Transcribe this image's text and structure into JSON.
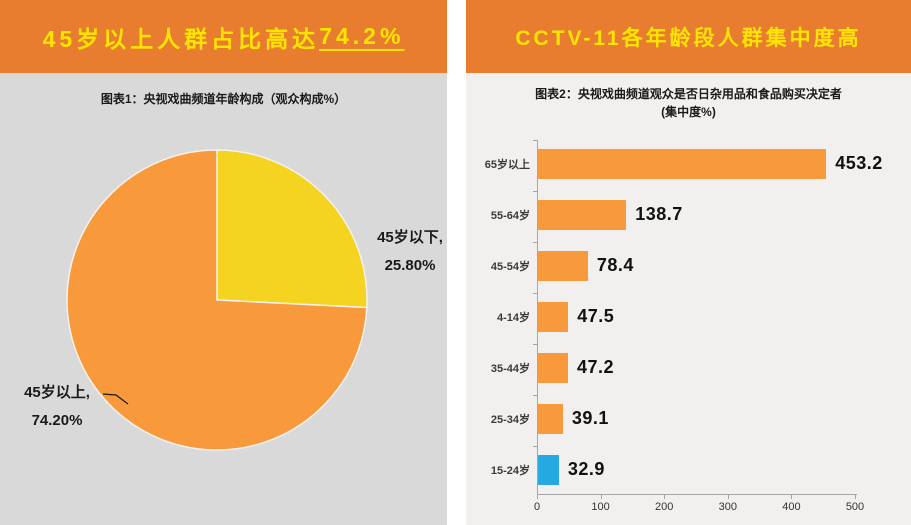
{
  "left_panel": {
    "title_prefix": "45岁以上人群占比高达",
    "title_highlight": "74.2%",
    "subtitle": "图表1：央视戏曲频道年龄构成（观众构成%）",
    "pie_label_right_lines": [
      "45岁以下,",
      "25.80%"
    ],
    "pie_label_left_lines": [
      "45岁以上,",
      "74.20%"
    ]
  },
  "right_panel": {
    "title": "CCTV-11各年龄段人群集中度高",
    "subtitle_line1": "图表2：央视戏曲频道观众是否日杂用品和食品购买决定者",
    "subtitle_line2": "(集中度%)"
  },
  "colors": {
    "banner_bg": "#E97D2F",
    "banner_text": "#FFE500",
    "left_panel_bg": "#D9D9D9",
    "right_panel_bg": "#F1F0EE",
    "orange_series": "#F8993C",
    "yellow_slice": "#F4D321",
    "blue_bar": "#25A9E0",
    "axis_gray": "#A6A6A6",
    "text_dark": "#1A1A1A"
  },
  "chart_data": [
    {
      "type": "pie",
      "title": "图表1：央视戏曲频道年龄构成（观众构成%）",
      "start_angle": "12-oclock",
      "direction": "clockwise",
      "slices": [
        {
          "name": "under-45",
          "label": "45岁以下",
          "value": 25.8,
          "display": "25.80%",
          "color": "#F4D321"
        },
        {
          "name": "over-45",
          "label": "45岁以上",
          "value": 74.2,
          "display": "74.20%",
          "color": "#F8993C"
        }
      ]
    },
    {
      "type": "bar",
      "orientation": "horizontal",
      "title": "图表2：央视戏曲频道观众是否日杂用品和食品购买决定者(集中度%)",
      "categories": [
        "65岁以上",
        "55-64岁",
        "45-54岁",
        "4-14岁",
        "35-44岁",
        "25-34岁",
        "15-24岁"
      ],
      "values": [
        453.2,
        138.7,
        78.4,
        47.5,
        47.2,
        39.1,
        32.9
      ],
      "value_labels": [
        "453.2",
        "138.7",
        "78.4",
        "47.5",
        "47.2",
        "39.1",
        "32.9"
      ],
      "bar_colors": [
        "#F8993C",
        "#F8993C",
        "#F8993C",
        "#F8993C",
        "#F8993C",
        "#F8993C",
        "#25A9E0"
      ],
      "xlim": [
        0,
        500
      ],
      "xticks": [
        0,
        100,
        200,
        300,
        400,
        500
      ],
      "xlabel": "",
      "ylabel": "",
      "grid": false,
      "legend": false
    }
  ]
}
